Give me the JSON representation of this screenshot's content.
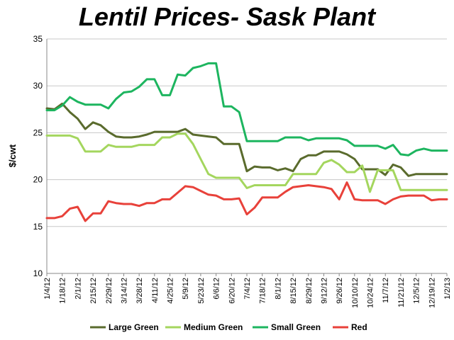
{
  "chart_data": {
    "type": "line",
    "title": "Lentil Prices- Sask Plant",
    "ylabel": "$/cwt",
    "xlabel": "",
    "ylim": [
      10,
      35
    ],
    "yticks": [
      10,
      15,
      20,
      25,
      30,
      35
    ],
    "grid": "horizontal",
    "legend_position": "bottom",
    "x": [
      "1/4/12",
      "1/11/12",
      "1/18/12",
      "1/25/12",
      "2/1/12",
      "2/8/12",
      "2/15/12",
      "2/22/12",
      "2/29/12",
      "3/7/12",
      "3/14/12",
      "3/21/12",
      "3/28/12",
      "4/4/12",
      "4/11/12",
      "4/18/12",
      "4/25/12",
      "5/2/12",
      "5/9/12",
      "5/16/12",
      "5/23/12",
      "5/30/12",
      "6/6/12",
      "6/13/12",
      "6/20/12",
      "6/27/12",
      "7/4/12",
      "7/11/12",
      "7/18/12",
      "7/25/12",
      "8/1/12",
      "8/8/12",
      "8/15/12",
      "8/22/12",
      "8/29/12",
      "9/5/12",
      "9/12/12",
      "9/19/12",
      "9/26/12",
      "10/3/12",
      "10/10/12",
      "10/17/12",
      "10/24/12",
      "10/31/12",
      "11/7/12",
      "11/14/12",
      "11/21/12",
      "11/28/12",
      "12/5/12",
      "12/12/12",
      "12/19/12",
      "12/26/12",
      "1/2/13"
    ],
    "x_tick_labels": [
      "1/4/12",
      "1/18/12",
      "2/1/12",
      "2/15/12",
      "2/29/12",
      "3/14/12",
      "3/28/12",
      "4/11/12",
      "4/25/12",
      "5/9/12",
      "5/23/12",
      "6/6/12",
      "6/20/12",
      "7/4/12",
      "7/18/12",
      "8/1/12",
      "8/15/12",
      "8/29/12",
      "9/12/12",
      "9/26/12",
      "10/10/12",
      "10/24/12",
      "11/7/12",
      "11/21/12",
      "12/5/12",
      "12/19/12",
      "1/2/13"
    ],
    "series": [
      {
        "name": "Large Green",
        "color": "#5a6b2d",
        "values": [
          27.6,
          27.5,
          28.1,
          27.2,
          26.5,
          25.4,
          26.1,
          25.8,
          25.1,
          24.6,
          24.5,
          24.5,
          24.6,
          24.8,
          25.1,
          25.1,
          25.1,
          25.1,
          25.4,
          24.8,
          24.7,
          24.6,
          24.5,
          23.8,
          23.8,
          23.8,
          20.9,
          21.4,
          21.3,
          21.3,
          21.0,
          21.2,
          20.9,
          22.2,
          22.6,
          22.6,
          23.0,
          23.0,
          23.0,
          22.7,
          22.2,
          21.1,
          21.1,
          21.1,
          20.5,
          21.6,
          21.3,
          20.4,
          20.6,
          20.6,
          20.6,
          20.6,
          20.6
        ]
      },
      {
        "name": "Medium Green",
        "color": "#a4d65e",
        "values": [
          24.7,
          24.7,
          24.7,
          24.7,
          24.4,
          23.0,
          23.0,
          23.0,
          23.7,
          23.5,
          23.5,
          23.5,
          23.7,
          23.7,
          23.7,
          24.5,
          24.5,
          24.9,
          24.9,
          23.8,
          22.2,
          20.6,
          20.2,
          20.2,
          20.2,
          20.2,
          19.1,
          19.4,
          19.4,
          19.4,
          19.4,
          19.4,
          20.6,
          20.6,
          20.6,
          20.6,
          21.8,
          22.1,
          21.6,
          20.8,
          20.8,
          21.5,
          18.7,
          21.0,
          21.0,
          21.0,
          18.9,
          18.9,
          18.9,
          18.9,
          18.9,
          18.9,
          18.9
        ]
      },
      {
        "name": "Small Green",
        "color": "#1db55f",
        "values": [
          27.4,
          27.4,
          27.9,
          28.8,
          28.3,
          28.0,
          28.0,
          28.0,
          27.6,
          28.6,
          29.3,
          29.4,
          29.9,
          30.7,
          30.7,
          29.0,
          29.0,
          31.2,
          31.1,
          31.9,
          32.1,
          32.4,
          32.4,
          27.8,
          27.8,
          27.2,
          24.1,
          24.1,
          24.1,
          24.1,
          24.1,
          24.5,
          24.5,
          24.5,
          24.2,
          24.4,
          24.4,
          24.4,
          24.4,
          24.2,
          23.6,
          23.6,
          23.6,
          23.6,
          23.3,
          23.7,
          22.7,
          22.6,
          23.1,
          23.3,
          23.1,
          23.1,
          23.1
        ]
      },
      {
        "name": "Red",
        "color": "#e8413a",
        "values": [
          15.9,
          15.9,
          16.1,
          16.9,
          17.1,
          15.6,
          16.4,
          16.4,
          17.7,
          17.5,
          17.4,
          17.4,
          17.2,
          17.5,
          17.5,
          17.9,
          17.9,
          18.6,
          19.3,
          19.2,
          18.8,
          18.4,
          18.3,
          17.9,
          17.9,
          18.0,
          16.3,
          17.0,
          18.1,
          18.1,
          18.1,
          18.7,
          19.2,
          19.3,
          19.4,
          19.3,
          19.2,
          19.0,
          17.9,
          19.7,
          17.9,
          17.8,
          17.8,
          17.8,
          17.4,
          17.9,
          18.2,
          18.3,
          18.3,
          18.3,
          17.8,
          17.9,
          17.9
        ]
      }
    ],
    "colors": {
      "grid": "#c8c8c8",
      "axis": "#888888",
      "text": "#000000"
    }
  }
}
